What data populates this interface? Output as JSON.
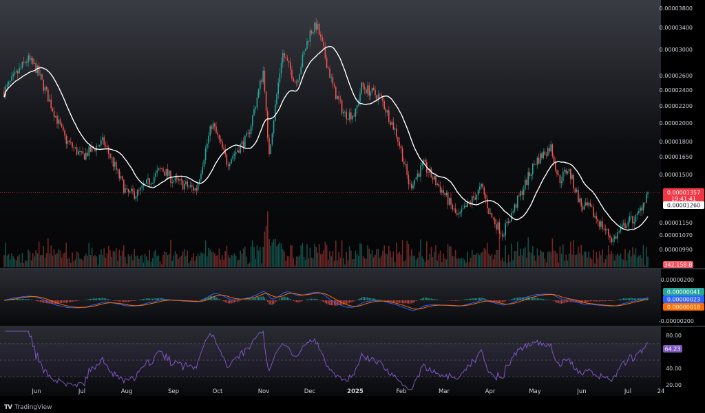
{
  "app": {
    "brand_logo": "TV",
    "brand_name": "TradingView"
  },
  "colors": {
    "up": "#26a69a",
    "down": "#ef5350",
    "ma": "#ffffff",
    "macd": "#2962ff",
    "signal": "#ff6d00",
    "rsi": "#7e57c2",
    "price_badge": "#f23645",
    "ma_badge": "#ffffff"
  },
  "price_axis": {
    "ticks": [
      "0.00003800",
      "0.00003400",
      "0.00003000",
      "0.00002600",
      "0.00002400",
      "0.00002200",
      "0.00002000",
      "0.00001800",
      "0.00001650",
      "0.00001500",
      "0.00001150",
      "0.00001070",
      "0.00000990"
    ],
    "current_price": "0.00001357",
    "countdown": "19:41:41",
    "ma_value": "0.00001260",
    "volume_value": "342.158 B"
  },
  "macd_axis": {
    "ticks": [
      "0.00000200",
      "-0.00000200"
    ],
    "histogram_value": "0.00000041",
    "macd_value": "0.00000023",
    "signal_value": "0.00000018"
  },
  "rsi_axis": {
    "ticks": [
      "80.00",
      "40.00",
      "20.00"
    ],
    "value": "64.23"
  },
  "time_axis": {
    "labels": [
      "Jun",
      "Jul",
      "Aug",
      "Sep",
      "Oct",
      "Nov",
      "Dec",
      "2025",
      "Feb",
      "Mar",
      "Apr",
      "May",
      "Jun",
      "Jul",
      "24"
    ],
    "bold_label": "2025"
  },
  "chart_data": {
    "type": "candlestick",
    "symbol_unit": "price",
    "ma_series": [
      {
        "x": "Jun",
        "y": 2.55e-05
      },
      {
        "x": "Jul",
        "y": 1.85e-05
      },
      {
        "x": "Aug",
        "y": 1.5e-05
      },
      {
        "x": "Sep",
        "y": 1.4e-05
      },
      {
        "x": "Oct",
        "y": 1.65e-05
      },
      {
        "x": "Nov",
        "y": 1.85e-05
      },
      {
        "x": "Dec",
        "y": 2.8e-05
      },
      {
        "x": "2025",
        "y": 2.3e-05
      },
      {
        "x": "Feb",
        "y": 1.85e-05
      },
      {
        "x": "Mar",
        "y": 1.5e-05
      },
      {
        "x": "Apr",
        "y": 1.32e-05
      },
      {
        "x": "May",
        "y": 1.38e-05
      },
      {
        "x": "Jun",
        "y": 1.44e-05
      },
      {
        "x": "Jul",
        "y": 1.18e-05
      },
      {
        "x": "24",
        "y": 1.26e-05
      }
    ],
    "price_path": [
      {
        "x": "Jun",
        "y": 2.7e-05
      },
      {
        "x": "Jul",
        "y": 1.65e-05
      },
      {
        "x": "Aug",
        "y": 1.35e-05
      },
      {
        "x": "Sep",
        "y": 1.45e-05
      },
      {
        "x": "Oct",
        "y": 1.85e-05
      },
      {
        "x": "Nov",
        "y": 2.7e-05
      },
      {
        "x": "Dec",
        "y": 3.3e-05
      },
      {
        "x": "2025",
        "y": 2.1e-05
      },
      {
        "x": "Feb",
        "y": 1.7e-05
      },
      {
        "x": "Mar",
        "y": 1.35e-05
      },
      {
        "x": "Apr",
        "y": 1.2e-05
      },
      {
        "x": "May",
        "y": 1.6e-05
      },
      {
        "x": "Jun",
        "y": 1.25e-05
      },
      {
        "x": "Jul",
        "y": 1.16e-05
      },
      {
        "x": "24",
        "y": 1.357e-05
      }
    ],
    "rsi_bands": [
      70,
      50,
      30
    ],
    "rsi_range": [
      20,
      80
    ]
  }
}
